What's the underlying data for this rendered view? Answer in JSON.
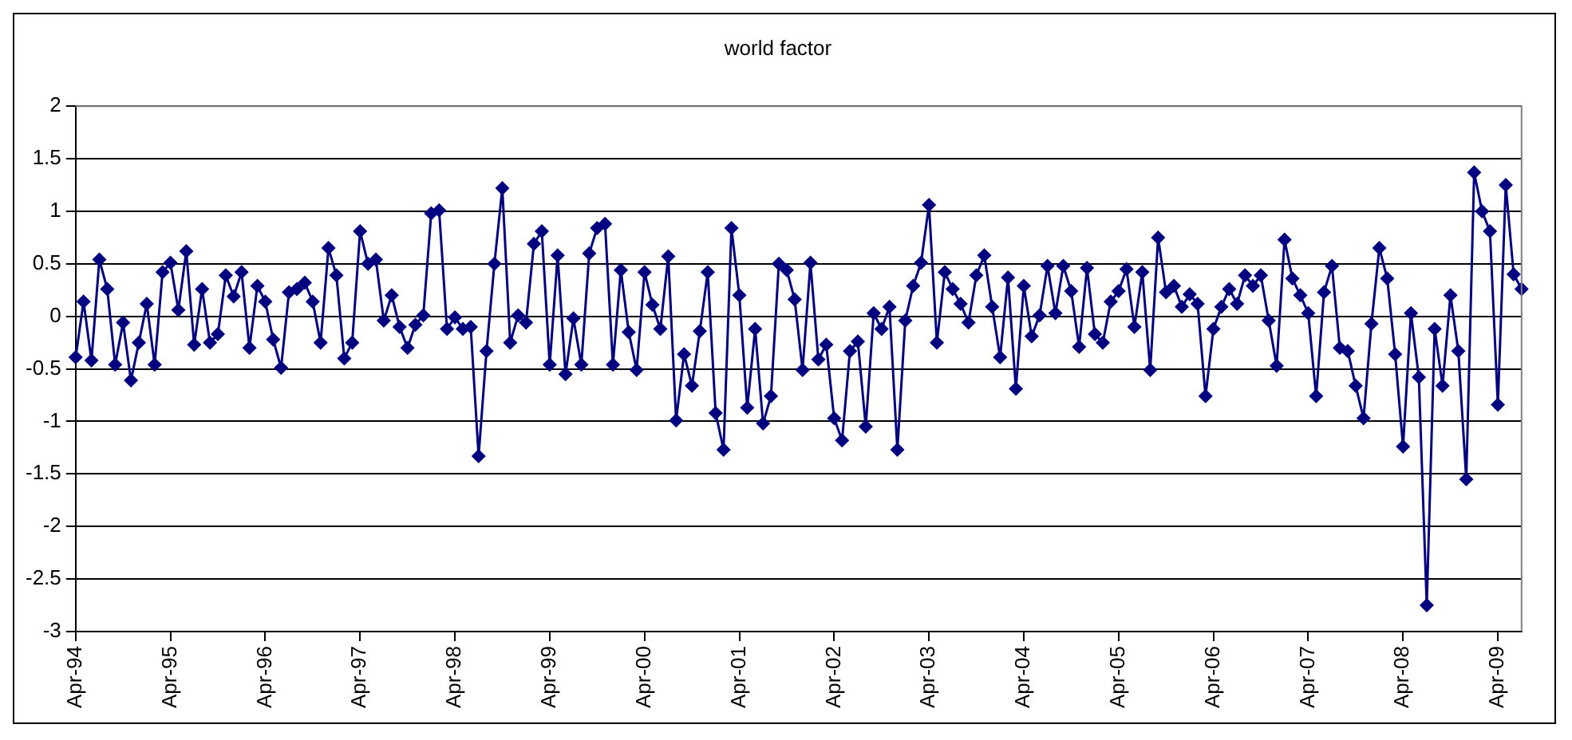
{
  "chart_data": {
    "type": "line",
    "title": "world factor",
    "categories": [
      "Apr-94",
      null,
      null,
      null,
      null,
      null,
      null,
      null,
      null,
      null,
      null,
      null,
      "Apr-95",
      null,
      null,
      null,
      null,
      null,
      null,
      null,
      null,
      null,
      null,
      null,
      "Apr-96",
      null,
      null,
      null,
      null,
      null,
      null,
      null,
      null,
      null,
      null,
      null,
      "Apr-97",
      null,
      null,
      null,
      null,
      null,
      null,
      null,
      null,
      null,
      null,
      null,
      "Apr-98",
      null,
      null,
      null,
      null,
      null,
      null,
      null,
      null,
      null,
      null,
      null,
      "Apr-99",
      null,
      null,
      null,
      null,
      null,
      null,
      null,
      null,
      null,
      null,
      null,
      "Apr-00",
      null,
      null,
      null,
      null,
      null,
      null,
      null,
      null,
      null,
      null,
      null,
      "Apr-01",
      null,
      null,
      null,
      null,
      null,
      null,
      null,
      null,
      null,
      null,
      null,
      "Apr-02",
      null,
      null,
      null,
      null,
      null,
      null,
      null,
      null,
      null,
      null,
      null,
      "Apr-03",
      null,
      null,
      null,
      null,
      null,
      null,
      null,
      null,
      null,
      null,
      null,
      "Apr-04",
      null,
      null,
      null,
      null,
      null,
      null,
      null,
      null,
      null,
      null,
      null,
      "Apr-05",
      null,
      null,
      null,
      null,
      null,
      null,
      null,
      null,
      null,
      null,
      null,
      "Apr-06",
      null,
      null,
      null,
      null,
      null,
      null,
      null,
      null,
      null,
      null,
      null,
      "Apr-07",
      null,
      null,
      null,
      null,
      null,
      null,
      null,
      null,
      null,
      null,
      null,
      "Apr-08",
      null,
      null,
      null,
      null,
      null,
      null,
      null,
      null,
      null,
      null,
      null,
      "Apr-09",
      null,
      null,
      null
    ],
    "series": [
      {
        "color": "#000080",
        "values": [
          -0.39,
          0.14,
          -0.42,
          0.54,
          0.26,
          -0.46,
          -0.06,
          -0.61,
          -0.25,
          0.12,
          -0.46,
          0.42,
          0.51,
          0.06,
          0.62,
          -0.27,
          0.26,
          -0.25,
          -0.17,
          0.39,
          0.19,
          0.42,
          -0.3,
          0.29,
          0.14,
          -0.22,
          -0.49,
          0.23,
          0.26,
          0.32,
          0.14,
          -0.25,
          0.65,
          0.39,
          -0.4,
          -0.25,
          0.81,
          0.5,
          0.54,
          -0.04,
          0.2,
          -0.1,
          -0.3,
          -0.08,
          0.01,
          0.98,
          1.01,
          -0.12,
          -0.01,
          -0.12,
          -0.1,
          -1.33,
          -0.33,
          0.5,
          1.22,
          -0.25,
          0.01,
          -0.06,
          0.69,
          0.81,
          -0.46,
          0.58,
          -0.55,
          -0.02,
          -0.46,
          0.6,
          0.84,
          0.88,
          -0.46,
          0.44,
          -0.15,
          -0.51,
          0.42,
          0.11,
          -0.12,
          0.57,
          -0.99,
          -0.36,
          -0.66,
          -0.14,
          0.42,
          -0.92,
          -1.27,
          0.84,
          0.2,
          -0.87,
          -0.12,
          -1.02,
          -0.76,
          0.5,
          0.44,
          0.16,
          -0.51,
          0.51,
          -0.41,
          -0.27,
          -0.97,
          -1.18,
          -0.33,
          -0.24,
          -1.05,
          0.03,
          -0.12,
          0.09,
          -1.27,
          -0.04,
          0.29,
          0.51,
          1.06,
          -0.25,
          0.42,
          0.26,
          0.12,
          -0.06,
          0.39,
          0.58,
          0.09,
          -0.39,
          0.37,
          -0.69,
          0.29,
          -0.19,
          0.01,
          0.48,
          0.03,
          0.48,
          0.24,
          -0.29,
          0.46,
          -0.17,
          -0.25,
          0.14,
          0.24,
          0.45,
          -0.1,
          0.42,
          -0.51,
          0.75,
          0.23,
          0.29,
          0.09,
          0.21,
          0.12,
          -0.76,
          -0.12,
          0.09,
          0.26,
          0.12,
          0.39,
          0.29,
          0.39,
          -0.04,
          -0.47,
          0.73,
          0.36,
          0.2,
          0.03,
          -0.76,
          0.23,
          0.48,
          -0.3,
          -0.33,
          -0.66,
          -0.97,
          -0.07,
          0.65,
          0.36,
          -0.36,
          -1.24,
          0.03,
          -0.58,
          -2.75,
          -0.12,
          -0.66,
          0.2,
          -0.33,
          -1.55,
          1.37,
          1.0,
          0.81,
          -0.84,
          1.25,
          0.4,
          0.26
        ]
      }
    ],
    "ylim": [
      -3,
      2
    ],
    "yticks": [
      -3,
      -2.5,
      -2,
      -1.5,
      -1,
      -0.5,
      0,
      0.5,
      1,
      1.5,
      2
    ],
    "grid": "y",
    "legend": false,
    "marker": "diamond",
    "line_style": "solid"
  }
}
